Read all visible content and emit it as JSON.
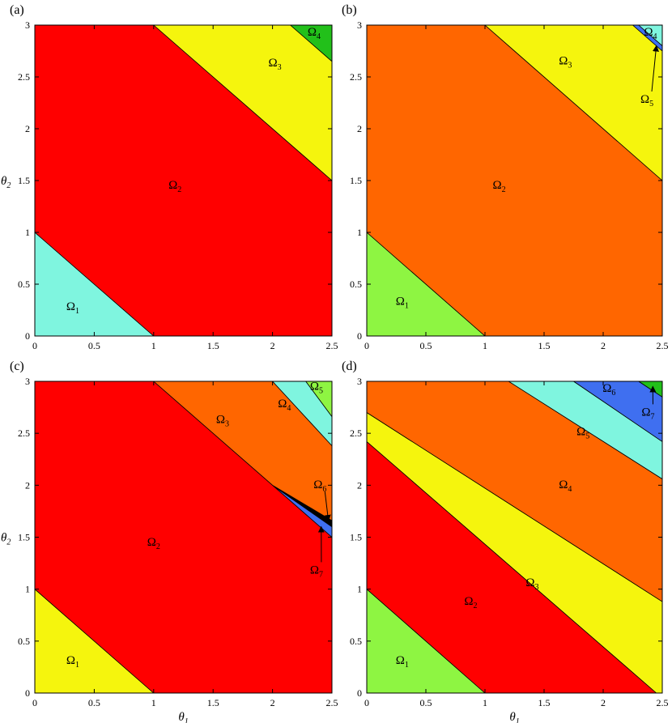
{
  "chart_data": [
    {
      "type": "area",
      "panel_label": "(a)",
      "xlim": [
        0,
        2.5
      ],
      "ylim": [
        0,
        3
      ],
      "xticks": [
        "0",
        "0.5",
        "1",
        "1.5",
        "2",
        "2.5"
      ],
      "yticks": [
        "0",
        "0.5",
        "1",
        "1.5",
        "2",
        "2.5",
        "3"
      ],
      "xlabel": "",
      "ylabel": "θ2",
      "regions": [
        {
          "label": "Ω1",
          "color": "#7ff5df",
          "polygon": [
            [
              0,
              0
            ],
            [
              1,
              0
            ],
            [
              0,
              1
            ]
          ]
        },
        {
          "label": "Ω2",
          "color": "#ff0000",
          "polygon": [
            [
              1,
              0
            ],
            [
              2.5,
              0
            ],
            [
              2.5,
              1.5
            ],
            [
              1,
              3
            ],
            [
              0,
              3
            ],
            [
              0,
              1
            ]
          ]
        },
        {
          "label": "Ω3",
          "color": "#f5f50d",
          "polygon": [
            [
              2.5,
              1.5
            ],
            [
              2.5,
              2.65
            ],
            [
              2.15,
              3
            ],
            [
              1,
              3
            ]
          ]
        },
        {
          "label": "Ω4",
          "color": "#22c01a",
          "polygon": [
            [
              2.15,
              3
            ],
            [
              2.5,
              3
            ],
            [
              2.5,
              2.65
            ]
          ]
        }
      ],
      "annotations": [
        {
          "text": "Ω1",
          "x": 0.32,
          "y": 0.25
        },
        {
          "text": "Ω2",
          "x": 1.18,
          "y": 1.42
        },
        {
          "text": "Ω3",
          "x": 2.02,
          "y": 2.6
        },
        {
          "text": "Ω4",
          "x": 2.35,
          "y": 2.9
        }
      ]
    },
    {
      "type": "area",
      "panel_label": "(b)",
      "xlim": [
        0,
        2.5
      ],
      "ylim": [
        0,
        3
      ],
      "xticks": [
        "0",
        "0.5",
        "1",
        "1.5",
        "2",
        "2.5"
      ],
      "yticks": [
        "0",
        "0.5",
        "1",
        "1.5",
        "2",
        "2.5",
        "3"
      ],
      "xlabel": "",
      "ylabel": "",
      "regions": [
        {
          "label": "Ω1",
          "color": "#8ef542",
          "polygon": [
            [
              0,
              0
            ],
            [
              1,
              0
            ],
            [
              0,
              1
            ]
          ]
        },
        {
          "label": "Ω2",
          "color": "#ff6600",
          "polygon": [
            [
              1,
              0
            ],
            [
              2.5,
              0
            ],
            [
              2.5,
              1.5
            ],
            [
              1,
              3
            ],
            [
              0,
              3
            ],
            [
              0,
              1
            ]
          ]
        },
        {
          "label": "Ω3",
          "color": "#f5f50d",
          "polygon": [
            [
              2.5,
              1.5
            ],
            [
              2.5,
              2.75
            ],
            [
              2.25,
              3
            ],
            [
              1,
              3
            ]
          ]
        },
        {
          "label": "Ω5",
          "color": "#3f6ff0",
          "polygon": [
            [
              2.25,
              3
            ],
            [
              2.5,
              2.75
            ],
            [
              2.5,
              2.8
            ],
            [
              2.3,
              3
            ]
          ]
        },
        {
          "label": "Ω4",
          "color": "#7ff5df",
          "polygon": [
            [
              2.3,
              3
            ],
            [
              2.5,
              3
            ],
            [
              2.5,
              2.8
            ]
          ]
        }
      ],
      "annotations": [
        {
          "text": "Ω1",
          "x": 0.3,
          "y": 0.3
        },
        {
          "text": "Ω2",
          "x": 1.12,
          "y": 1.42
        },
        {
          "text": "Ω3",
          "x": 1.68,
          "y": 2.62
        },
        {
          "text": "Ω4",
          "x": 2.4,
          "y": 2.9
        },
        {
          "text": "Ω5",
          "x": 2.37,
          "y": 2.25,
          "arrow_to": [
            2.45,
            2.8
          ]
        }
      ]
    },
    {
      "type": "area",
      "panel_label": "(c)",
      "xlim": [
        0,
        2.5
      ],
      "ylim": [
        0,
        3
      ],
      "xticks": [
        "0",
        "0.5",
        "1",
        "1.5",
        "2",
        "2.5"
      ],
      "yticks": [
        "0",
        "0.5",
        "1",
        "1.5",
        "2",
        "2.5",
        "3"
      ],
      "xlabel": "θ1",
      "ylabel": "θ2",
      "regions": [
        {
          "label": "Ω1",
          "color": "#f5f50d",
          "polygon": [
            [
              0,
              0
            ],
            [
              1,
              0
            ],
            [
              0,
              1
            ]
          ]
        },
        {
          "label": "Ω2",
          "color": "#ff0000",
          "polygon": [
            [
              1,
              0
            ],
            [
              2.5,
              0
            ],
            [
              2.5,
              1.5
            ],
            [
              2,
              2
            ],
            [
              1,
              3
            ],
            [
              0,
              3
            ],
            [
              0,
              1
            ]
          ]
        },
        {
          "label": "Ω7",
          "color": "#3f6ff0",
          "polygon": [
            [
              2,
              2
            ],
            [
              2.5,
              1.5
            ],
            [
              2.5,
              1.6
            ]
          ]
        },
        {
          "label": "Ω6",
          "color": "#000000",
          "polygon": [
            [
              2,
              2
            ],
            [
              2.5,
              1.6
            ],
            [
              2.5,
              1.66
            ]
          ]
        },
        {
          "label": "Ω3",
          "color": "#ff6600",
          "polygon": [
            [
              1,
              3
            ],
            [
              2,
              2
            ],
            [
              2.5,
              1.66
            ],
            [
              2.5,
              2.38
            ],
            [
              2.0,
              3
            ]
          ]
        },
        {
          "label": "Ω4",
          "color": "#7ff5df",
          "polygon": [
            [
              2.0,
              3
            ],
            [
              2.5,
              2.38
            ],
            [
              2.5,
              2.66
            ],
            [
              2.28,
              3
            ]
          ]
        },
        {
          "label": "Ω5",
          "color": "#8ef542",
          "polygon": [
            [
              2.28,
              3
            ],
            [
              2.5,
              3
            ],
            [
              2.5,
              2.66
            ]
          ]
        }
      ],
      "annotations": [
        {
          "text": "Ω1",
          "x": 0.32,
          "y": 0.28
        },
        {
          "text": "Ω2",
          "x": 1.0,
          "y": 1.42
        },
        {
          "text": "Ω3",
          "x": 1.58,
          "y": 2.6
        },
        {
          "text": "Ω4",
          "x": 2.1,
          "y": 2.75
        },
        {
          "text": "Ω5",
          "x": 2.37,
          "y": 2.92
        },
        {
          "text": "Ω6",
          "x": 2.4,
          "y": 1.97,
          "arrow_to": [
            2.47,
            1.66
          ]
        },
        {
          "text": "Ω7",
          "x": 2.37,
          "y": 1.15,
          "arrow_to": [
            2.41,
            1.6
          ]
        }
      ]
    },
    {
      "type": "area",
      "panel_label": "(d)",
      "xlim": [
        0,
        2.5
      ],
      "ylim": [
        0,
        3
      ],
      "xticks": [
        "0",
        "0.5",
        "1",
        "1.5",
        "2",
        "2.5"
      ],
      "yticks": [
        "0",
        "0.5",
        "1",
        "1.5",
        "2",
        "2.5",
        "3"
      ],
      "xlabel": "θ1",
      "ylabel": "",
      "regions": [
        {
          "label": "Ω1",
          "color": "#8ef542",
          "polygon": [
            [
              0,
              0
            ],
            [
              1,
              0
            ],
            [
              0,
              1
            ]
          ]
        },
        {
          "label": "Ω2",
          "color": "#ff0000",
          "polygon": [
            [
              1,
              0
            ],
            [
              2.45,
              0
            ],
            [
              0,
              2.42
            ],
            [
              0,
              1
            ]
          ]
        },
        {
          "label": "Ω3",
          "color": "#f5f50d",
          "polygon": [
            [
              2.45,
              0
            ],
            [
              2.5,
              0
            ],
            [
              2.5,
              0.88
            ],
            [
              0,
              2.7
            ],
            [
              0,
              2.42
            ]
          ]
        },
        {
          "label": "Ω4",
          "color": "#ff6600",
          "polygon": [
            [
              0,
              2.7
            ],
            [
              2.5,
              0.88
            ],
            [
              2.5,
              2.06
            ],
            [
              1.2,
              3
            ],
            [
              0,
              3
            ]
          ]
        },
        {
          "label": "Ω5",
          "color": "#7ff5df",
          "polygon": [
            [
              1.2,
              3
            ],
            [
              2.5,
              2.06
            ],
            [
              2.5,
              2.42
            ],
            [
              1.75,
              3
            ]
          ]
        },
        {
          "label": "Ω6",
          "color": "#3f6ff0",
          "polygon": [
            [
              1.75,
              3
            ],
            [
              2.5,
              2.42
            ],
            [
              2.5,
              2.85
            ],
            [
              2.3,
              3
            ]
          ]
        },
        {
          "label": "Ω7",
          "color": "#22c01a",
          "polygon": [
            [
              2.3,
              3
            ],
            [
              2.5,
              3
            ],
            [
              2.5,
              2.85
            ]
          ]
        }
      ],
      "annotations": [
        {
          "text": "Ω1",
          "x": 0.3,
          "y": 0.28
        },
        {
          "text": "Ω2",
          "x": 0.88,
          "y": 0.85
        },
        {
          "text": "Ω3",
          "x": 1.4,
          "y": 1.03
        },
        {
          "text": "Ω4",
          "x": 1.68,
          "y": 1.97
        },
        {
          "text": "Ω5",
          "x": 1.83,
          "y": 2.48
        },
        {
          "text": "Ω6",
          "x": 2.05,
          "y": 2.9
        },
        {
          "text": "Ω7",
          "x": 2.38,
          "y": 2.67,
          "arrow_to": [
            2.42,
            2.95
          ]
        }
      ]
    }
  ]
}
